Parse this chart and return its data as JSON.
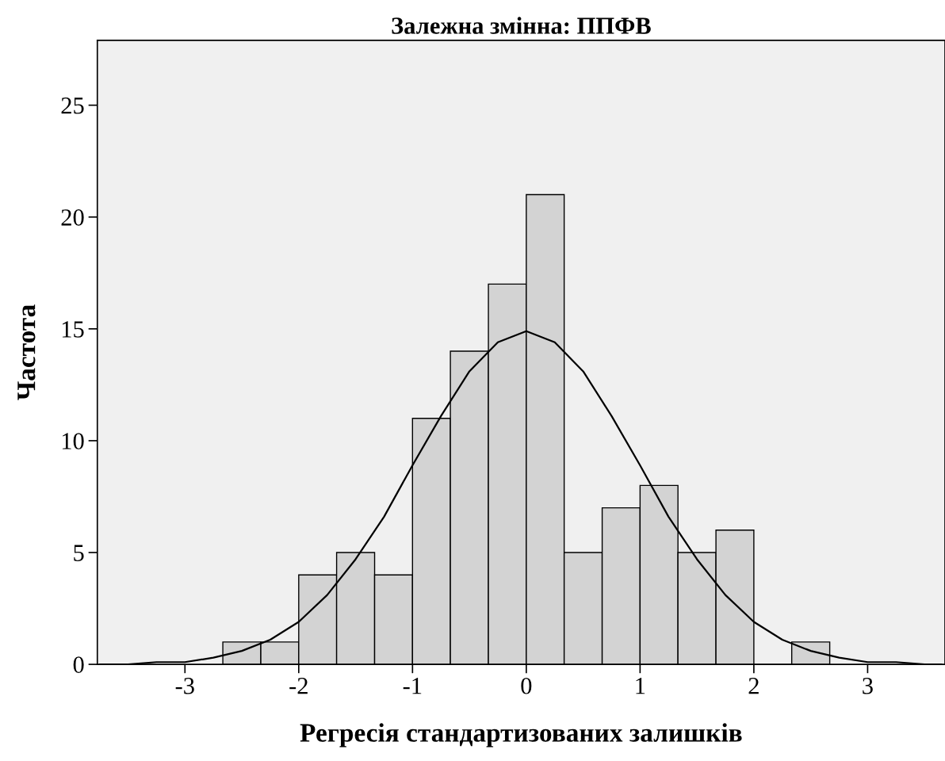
{
  "chart_data": {
    "type": "histogram",
    "title": "Залежна змінна: ППФВ",
    "xlabel": "Регресія стандартизованих залишків",
    "ylabel": "Частота",
    "bins": [
      -2.667,
      -2.333,
      -2.0,
      -1.667,
      -1.333,
      -1.0,
      -0.667,
      -0.333,
      0.0,
      0.333,
      0.667,
      1.0,
      1.333,
      1.667,
      2.0,
      2.333,
      2.667
    ],
    "values": [
      1,
      1,
      4,
      5,
      4,
      11,
      14,
      17,
      21,
      5,
      7,
      8,
      5,
      6,
      0,
      1
    ],
    "color": "#d3d3d3",
    "series": [
      {
        "type": "line",
        "color": "#000000",
        "x": [
          -3.75,
          -3.5,
          -3.25,
          -3.0,
          -2.75,
          -2.5,
          -2.25,
          -2.0,
          -1.75,
          -1.5,
          -1.25,
          -1.0,
          -0.75,
          -0.5,
          -0.25,
          0.0,
          0.25,
          0.5,
          0.75,
          1.0,
          1.25,
          1.5,
          1.75,
          2.0,
          2.25,
          2.5,
          2.75,
          3.0,
          3.25,
          3.5,
          3.65
        ],
        "values": [
          0.0,
          0.0,
          0.1,
          0.1,
          0.3,
          0.6,
          1.1,
          1.9,
          3.1,
          4.7,
          6.6,
          8.9,
          11.1,
          13.1,
          14.4,
          14.9,
          14.4,
          13.1,
          11.1,
          8.9,
          6.6,
          4.7,
          3.1,
          1.9,
          1.1,
          0.6,
          0.3,
          0.1,
          0.1,
          0.0,
          0.0
        ]
      }
    ],
    "xlim": [
      -3.77,
      3.68
    ],
    "ylim": [
      0,
      27.9
    ],
    "xticks": [
      -3,
      -2,
      -1,
      0,
      1,
      2,
      3
    ],
    "yticks": [
      0,
      5,
      10,
      15,
      20,
      25
    ],
    "grid": false,
    "legend": false
  }
}
